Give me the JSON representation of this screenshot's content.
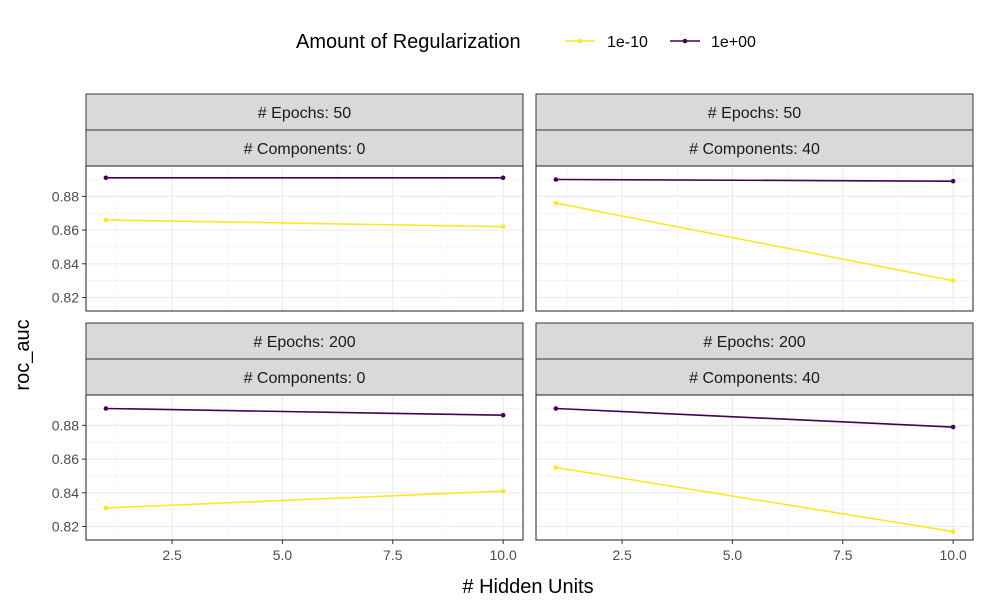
{
  "chart_data": {
    "type": "line",
    "legend": {
      "title": "Amount of Regularization",
      "position": "top",
      "entries": [
        {
          "label": "1e-10",
          "color": "#FDE725"
        },
        {
          "label": "1e+00",
          "color": "#440154"
        }
      ]
    },
    "xlabel": "# Hidden Units",
    "ylabel": "roc_auc",
    "xlim": [
      0.55,
      10.45
    ],
    "ylim": [
      0.812,
      0.898
    ],
    "x_ticks": [
      2.5,
      5.0,
      7.5,
      10.0
    ],
    "x_tick_labels": [
      "2.5",
      "5.0",
      "7.5",
      "10.0"
    ],
    "y_ticks": [
      0.82,
      0.84,
      0.86,
      0.88
    ],
    "y_tick_labels": [
      "0.82",
      "0.84",
      "0.86",
      "0.88"
    ],
    "grid": true,
    "panels": [
      {
        "strip_top": "# Epochs: 50",
        "strip_bottom": "# Components: 0",
        "series": [
          {
            "name": "1e-10",
            "x": [
              1,
              10
            ],
            "y": [
              0.866,
              0.862
            ]
          },
          {
            "name": "1e+00",
            "x": [
              1,
              10
            ],
            "y": [
              0.891,
              0.891
            ]
          }
        ]
      },
      {
        "strip_top": "# Epochs: 50",
        "strip_bottom": "# Components: 40",
        "series": [
          {
            "name": "1e-10",
            "x": [
              1,
              10
            ],
            "y": [
              0.876,
              0.83
            ]
          },
          {
            "name": "1e+00",
            "x": [
              1,
              10
            ],
            "y": [
              0.89,
              0.889
            ]
          }
        ]
      },
      {
        "strip_top": "# Epochs: 200",
        "strip_bottom": "# Components: 0",
        "series": [
          {
            "name": "1e-10",
            "x": [
              1,
              10
            ],
            "y": [
              0.831,
              0.841
            ]
          },
          {
            "name": "1e+00",
            "x": [
              1,
              10
            ],
            "y": [
              0.89,
              0.886
            ]
          }
        ]
      },
      {
        "strip_top": "# Epochs: 200",
        "strip_bottom": "# Components: 40",
        "series": [
          {
            "name": "1e-10",
            "x": [
              1,
              10
            ],
            "y": [
              0.855,
              0.817
            ]
          },
          {
            "name": "1e+00",
            "x": [
              1,
              10
            ],
            "y": [
              0.89,
              0.879
            ]
          }
        ]
      }
    ]
  }
}
